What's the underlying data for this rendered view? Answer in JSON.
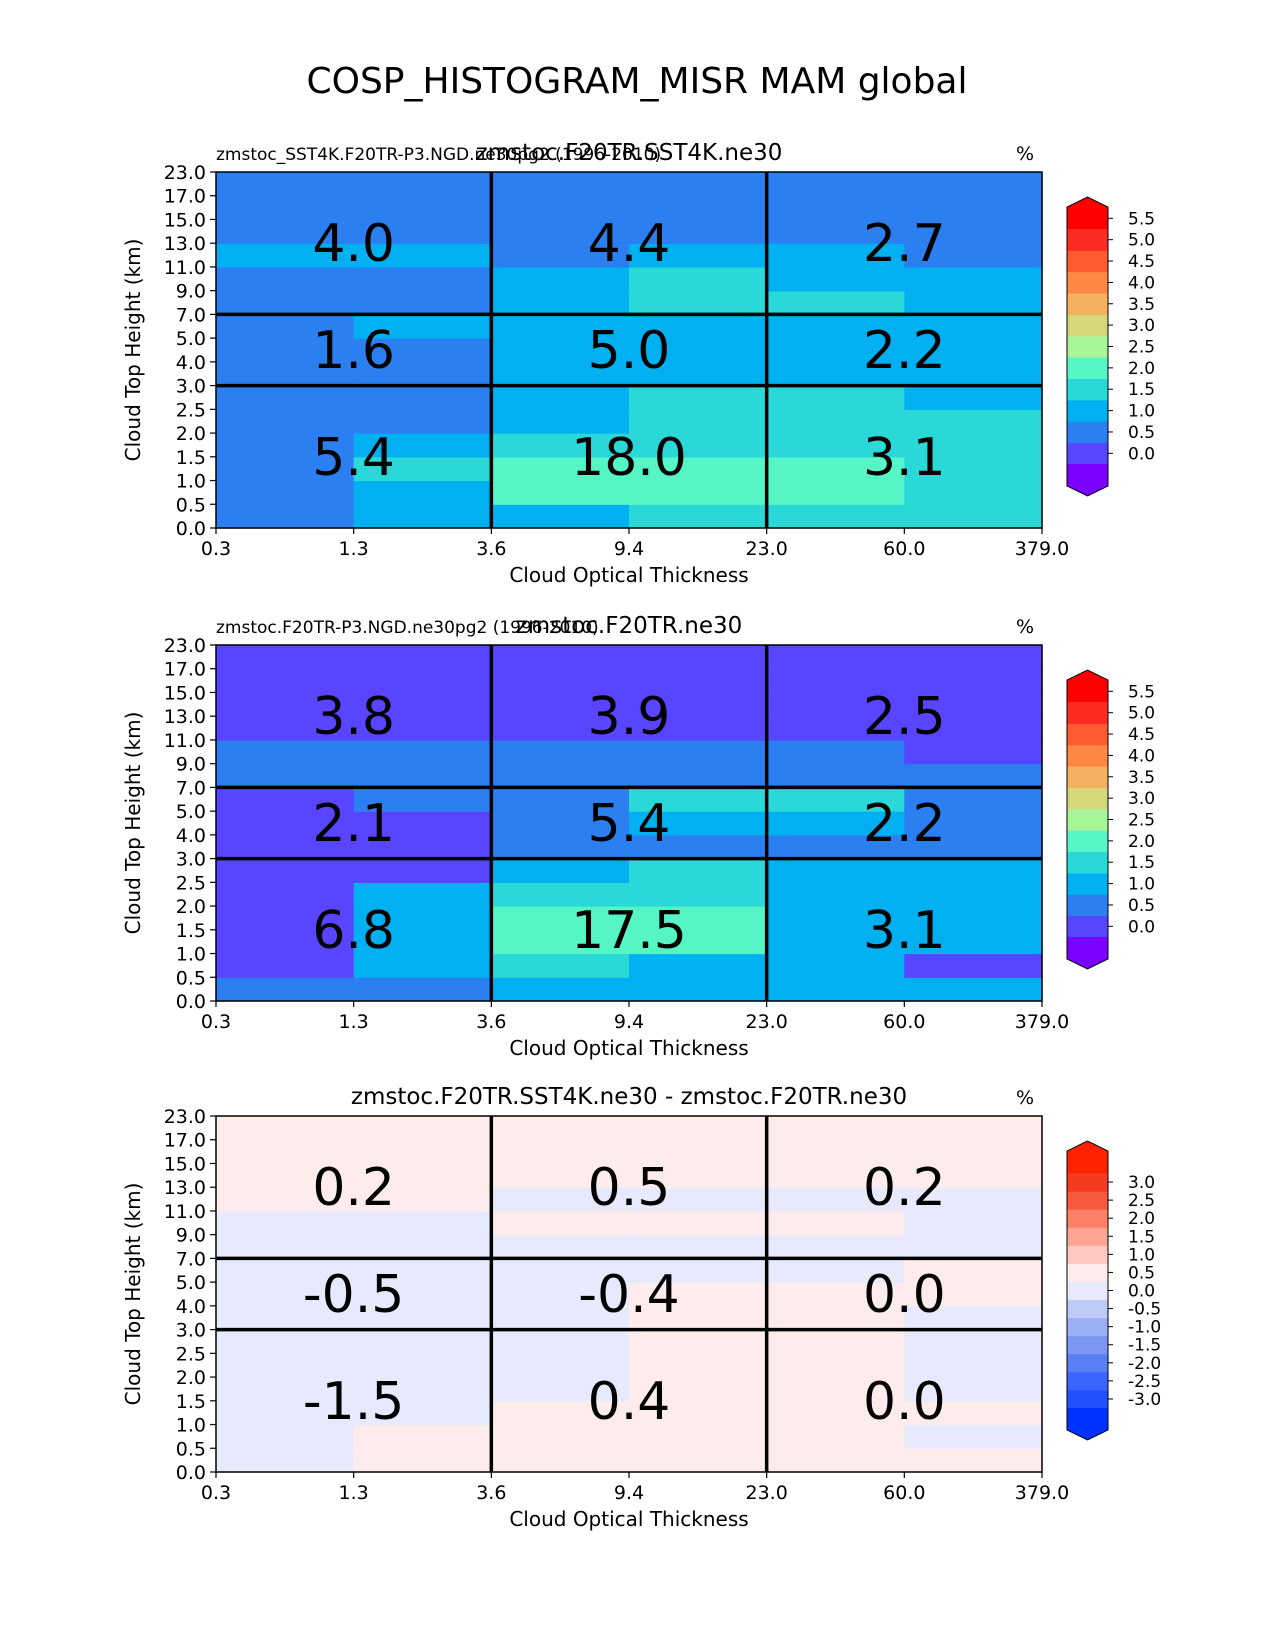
{
  "figure": {
    "title": "COSP_HISTOGRAM_MISR MAM global"
  },
  "chart_data": [
    {
      "type": "heatmap",
      "title": "zmstoc.F20TR.SST4K.ne30",
      "left_title": "zmstoc_SST4K.F20TR-P3.NGD.ne30pg2 (1996-2010)",
      "units": "%",
      "xlabel": "Cloud Optical Thickness",
      "ylabel": "Cloud Top Height (km)",
      "x_ticks": [
        "0.3",
        "1.3",
        "3.6",
        "9.4",
        "23.0",
        "60.0",
        "379.0"
      ],
      "y_ticks": [
        "0.0",
        "0.5",
        "1.0",
        "1.5",
        "2.0",
        "2.5",
        "3.0",
        "4.0",
        "5.0",
        "7.0",
        "9.0",
        "11.0",
        "13.0",
        "15.0",
        "17.0",
        "23.0"
      ],
      "colorbar": {
        "ticks": [
          "0.0",
          "0.5",
          "1.0",
          "1.5",
          "2.0",
          "2.5",
          "3.0",
          "3.5",
          "4.0",
          "4.5",
          "5.0",
          "5.5"
        ],
        "colors": [
          "#5845ff",
          "#2b7ff0",
          "#00b0f0",
          "#2ad8d8",
          "#55f5c5",
          "#a8f59a",
          "#d6d67a",
          "#f5b060",
          "#ff8845",
          "#ff5a30",
          "#ff2a20"
        ],
        "under": "#7a00ff",
        "over": "#ff0000"
      },
      "values": [
        [
          1,
          2,
          2,
          3,
          3,
          3,
          1
        ],
        [
          1,
          2,
          4,
          4,
          4,
          3,
          1
        ],
        [
          1,
          3,
          4,
          4,
          4,
          3,
          1
        ],
        [
          1,
          2,
          3,
          3,
          3,
          3,
          1
        ],
        [
          1,
          1,
          2,
          3,
          3,
          3,
          1
        ],
        [
          1,
          1,
          2,
          3,
          3,
          2,
          1
        ],
        [
          1,
          1,
          2,
          2,
          2,
          2,
          1
        ],
        [
          1,
          1,
          2,
          2,
          2,
          2,
          1
        ],
        [
          1,
          2,
          2,
          2,
          2,
          2,
          1
        ],
        [
          1,
          1,
          2,
          3,
          3,
          2,
          1
        ],
        [
          1,
          1,
          2,
          3,
          2,
          2,
          1
        ],
        [
          2,
          2,
          1,
          2,
          2,
          1,
          1
        ],
        [
          1,
          1,
          1,
          1,
          1,
          1,
          1
        ],
        [
          1,
          1,
          1,
          1,
          1,
          1,
          1
        ],
        [
          1,
          1,
          1,
          1,
          1,
          1,
          1
        ]
      ],
      "boxes": [
        [
          "5.4",
          "18.0",
          "3.1"
        ],
        [
          "1.6",
          "5.0",
          "2.2"
        ],
        [
          "4.0",
          "4.4",
          "2.7"
        ]
      ]
    },
    {
      "type": "heatmap",
      "title": "zmstoc.F20TR.ne30",
      "left_title": "zmstoc.F20TR-P3.NGD.ne30pg2 (1996-2010)",
      "units": "%",
      "xlabel": "Cloud Optical Thickness",
      "ylabel": "Cloud Top Height (km)",
      "x_ticks": [
        "0.3",
        "1.3",
        "3.6",
        "9.4",
        "23.0",
        "60.0",
        "379.0"
      ],
      "y_ticks": [
        "0.0",
        "0.5",
        "1.0",
        "1.5",
        "2.0",
        "2.5",
        "3.0",
        "4.0",
        "5.0",
        "7.0",
        "9.0",
        "11.0",
        "13.0",
        "15.0",
        "17.0",
        "23.0"
      ],
      "colorbar": {
        "ticks": [
          "0.0",
          "0.5",
          "1.0",
          "1.5",
          "2.0",
          "2.5",
          "3.0",
          "3.5",
          "4.0",
          "4.5",
          "5.0",
          "5.5"
        ],
        "colors": [
          "#5845ff",
          "#2b7ff0",
          "#00b0f0",
          "#2ad8d8",
          "#55f5c5",
          "#a8f59a",
          "#d6d67a",
          "#f5b060",
          "#ff8845",
          "#ff5a30",
          "#ff2a20"
        ],
        "under": "#7a00ff",
        "over": "#ff0000"
      },
      "values": [
        [
          1,
          1,
          2,
          2,
          2,
          2,
          0
        ],
        [
          0,
          2,
          3,
          2,
          2,
          0,
          0
        ],
        [
          0,
          2,
          4,
          4,
          2,
          2,
          0
        ],
        [
          0,
          2,
          4,
          4,
          2,
          2,
          0
        ],
        [
          0,
          2,
          3,
          3,
          2,
          2,
          0
        ],
        [
          0,
          0,
          2,
          3,
          2,
          2,
          0
        ],
        [
          0,
          0,
          1,
          1,
          1,
          1,
          0
        ],
        [
          0,
          0,
          1,
          2,
          2,
          1,
          0
        ],
        [
          0,
          1,
          1,
          3,
          3,
          1,
          0
        ],
        [
          1,
          1,
          1,
          1,
          1,
          1,
          0
        ],
        [
          1,
          1,
          1,
          1,
          1,
          0,
          0
        ],
        [
          0,
          0,
          0,
          0,
          0,
          0,
          0
        ],
        [
          0,
          0,
          0,
          0,
          0,
          0,
          0
        ],
        [
          0,
          0,
          0,
          0,
          0,
          0,
          0
        ],
        [
          0,
          0,
          0,
          0,
          0,
          0,
          0
        ]
      ],
      "boxes": [
        [
          "6.8",
          "17.5",
          "3.1"
        ],
        [
          "2.1",
          "5.4",
          "2.2"
        ],
        [
          "3.8",
          "3.9",
          "2.5"
        ]
      ]
    },
    {
      "type": "heatmap",
      "title": "zmstoc.F20TR.SST4K.ne30 - zmstoc.F20TR.ne30",
      "units": "%",
      "xlabel": "Cloud Optical Thickness",
      "ylabel": "Cloud Top Height (km)",
      "x_ticks": [
        "0.3",
        "1.3",
        "3.6",
        "9.4",
        "23.0",
        "60.0",
        "379.0"
      ],
      "y_ticks": [
        "0.0",
        "0.5",
        "1.0",
        "1.5",
        "2.0",
        "2.5",
        "3.0",
        "4.0",
        "5.0",
        "7.0",
        "9.0",
        "11.0",
        "13.0",
        "15.0",
        "17.0",
        "23.0"
      ],
      "colorbar": {
        "ticks": [
          "-3.0",
          "-2.5",
          "-2.0",
          "-1.5",
          "-1.0",
          "-0.5",
          "0.0",
          "0.5",
          "1.0",
          "1.5",
          "2.0",
          "2.5",
          "3.0"
        ],
        "colors": [
          "#2050ff",
          "#3a66ff",
          "#5a7ff5",
          "#7a97f5",
          "#9aaff5",
          "#bdcaf5",
          "#e6eafc",
          "#fdeceb",
          "#fcc8c0",
          "#fba595",
          "#fa8068",
          "#f85a40",
          "#f53a20"
        ],
        "under": "#0033ff",
        "over": "#ff2200"
      },
      "values": [
        [
          6,
          7,
          7,
          7,
          7,
          7,
          7
        ],
        [
          6,
          7,
          7,
          7,
          7,
          6,
          7
        ],
        [
          6,
          6,
          7,
          7,
          7,
          7,
          7
        ],
        [
          6,
          6,
          6,
          7,
          7,
          6,
          7
        ],
        [
          6,
          6,
          6,
          7,
          7,
          6,
          7
        ],
        [
          6,
          6,
          6,
          7,
          7,
          6,
          7
        ],
        [
          6,
          6,
          6,
          7,
          7,
          6,
          7
        ],
        [
          6,
          6,
          6,
          7,
          7,
          7,
          6
        ],
        [
          6,
          6,
          6,
          6,
          6,
          7,
          7
        ],
        [
          6,
          6,
          6,
          6,
          6,
          6,
          7
        ],
        [
          6,
          6,
          7,
          7,
          7,
          6,
          7
        ],
        [
          7,
          7,
          6,
          6,
          6,
          6,
          6
        ],
        [
          7,
          7,
          7,
          7,
          7,
          7,
          7
        ],
        [
          7,
          7,
          7,
          7,
          7,
          7,
          7
        ],
        [
          7,
          7,
          7,
          7,
          7,
          7,
          7
        ]
      ],
      "boxes": [
        [
          "-1.5",
          "0.4",
          "0.0"
        ],
        [
          "-0.5",
          "-0.4",
          "0.0"
        ],
        [
          "0.2",
          "0.5",
          "0.2"
        ]
      ]
    }
  ]
}
